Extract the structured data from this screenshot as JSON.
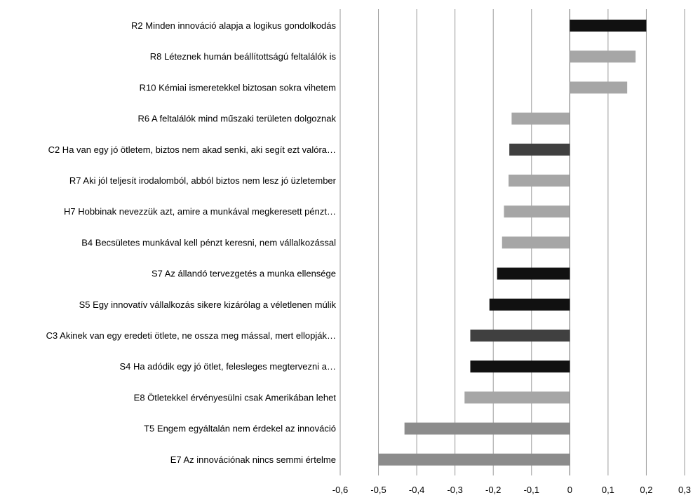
{
  "chart_data": {
    "type": "bar",
    "orientation": "horizontal",
    "title": "",
    "xlabel": "",
    "ylabel": "",
    "xlim": [
      -0.6,
      0.3
    ],
    "xticks": [
      -0.6,
      -0.5,
      -0.4,
      -0.3,
      -0.2,
      -0.1,
      0,
      0.1,
      0.2,
      0.3
    ],
    "xtick_labels": [
      "-0,6",
      "-0,5",
      "-0,4",
      "-0,3",
      "-0,2",
      "-0,1",
      "0",
      "0,1",
      "0,2",
      "0,3"
    ],
    "grid": "vertical",
    "legend": "none",
    "categories": [
      "R2 Minden innováció alapja a logikus gondolkodás",
      "R8 Léteznek humán beállítottságú feltalálók is",
      "R10 Kémiai ismeretekkel biztosan sokra vihetem",
      "R6 A feltalálók mind műszaki területen dolgoznak",
      "C2 Ha van egy jó ötletem, biztos nem akad senki, aki segít ezt valóra…",
      "R7 Aki jól teljesít irodalomból, abból biztos nem lesz jó üzletember",
      "H7 Hobbinak nevezzük azt, amire a munkával megkeresett pénzt…",
      "B4 Becsületes munkával kell pénzt keresni, nem vállalkozással",
      "S7 Az állandó tervezgetés a munka ellensége",
      "S5 Egy innovatív vállalkozás sikere kizárólag a véletlenen múlik",
      "C3 Akinek van egy eredeti ötlete, ne ossza meg mással, mert ellopják…",
      "S4 Ha adódik egy jó ötlet, felesleges megtervezni a…",
      "E8 Ötletekkel érvényesülni csak Amerikában lehet",
      "T5 Engem egyáltalán nem érdekel az innováció",
      "E7 Az innovációnak nincs semmi értelme"
    ],
    "values": [
      0.2,
      0.172,
      0.15,
      -0.152,
      -0.158,
      -0.16,
      -0.172,
      -0.177,
      -0.19,
      -0.21,
      -0.26,
      -0.26,
      -0.275,
      -0.432,
      -0.5
    ],
    "colors": [
      "#111111",
      "#a6a6a6",
      "#a6a6a6",
      "#a6a6a6",
      "#404040",
      "#a6a6a6",
      "#a6a6a6",
      "#a6a6a6",
      "#111111",
      "#111111",
      "#404040",
      "#111111",
      "#a6a6a6",
      "#8c8c8c",
      "#8c8c8c"
    ]
  }
}
